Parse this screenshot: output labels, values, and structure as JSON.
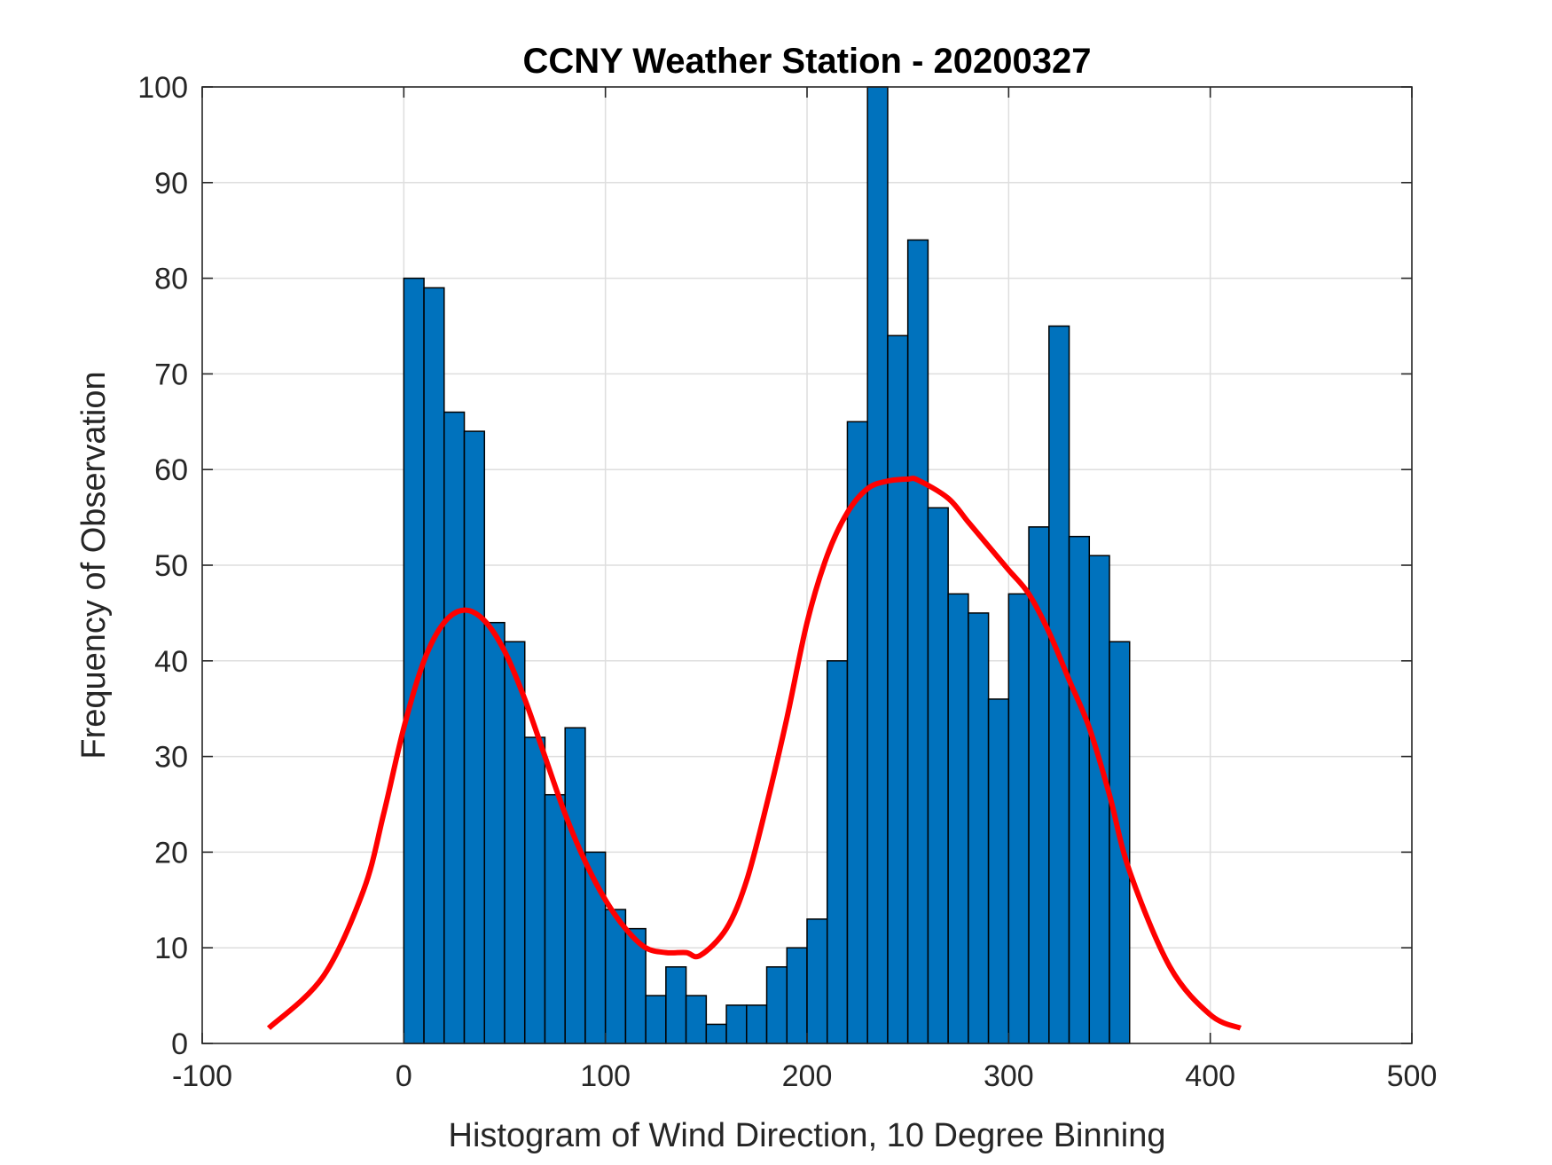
{
  "chart_data": {
    "type": "bar",
    "title": "CCNY Weather Station - 20200327",
    "xlabel": "Histogram of Wind Direction, 10 Degree Binning",
    "ylabel": "Frequency of Observation",
    "xlim": [
      -100,
      500
    ],
    "ylim": [
      0,
      100
    ],
    "xticks": [
      -100,
      0,
      100,
      200,
      300,
      400,
      500
    ],
    "yticks": [
      0,
      10,
      20,
      30,
      40,
      50,
      60,
      70,
      80,
      90,
      100
    ],
    "grid": true,
    "bin_width": 10,
    "bin_edges_start": [
      0,
      10,
      20,
      30,
      40,
      50,
      60,
      70,
      80,
      90,
      100,
      110,
      120,
      130,
      140,
      150,
      160,
      170,
      180,
      190,
      200,
      210,
      220,
      230,
      240,
      250,
      260,
      270,
      280,
      290,
      300,
      310,
      320,
      330,
      340,
      350
    ],
    "values": [
      80,
      79,
      66,
      64,
      44,
      42,
      32,
      26,
      33,
      20,
      14,
      12,
      5,
      8,
      5,
      2,
      4,
      4,
      8,
      10,
      13,
      40,
      65,
      100,
      74,
      84,
      56,
      47,
      45,
      36,
      47,
      54,
      75,
      53,
      51,
      42
    ],
    "bar_color": "#0072BD",
    "fit_curve": {
      "name": "fit",
      "color": "#FF0000",
      "x": [
        -67,
        -40,
        -20,
        -10,
        0,
        10,
        20,
        30,
        40,
        50,
        60,
        70,
        80,
        90,
        100,
        110,
        120,
        130,
        140,
        147,
        160,
        170,
        180,
        190,
        200,
        210,
        220,
        230,
        240,
        250,
        255,
        270,
        280,
        290,
        300,
        310,
        320,
        330,
        340,
        350,
        360,
        380,
        400,
        415
      ],
      "y": [
        1.6,
        7,
        16,
        24,
        33,
        40,
        44,
        45.3,
        44.2,
        41,
        36,
        30,
        24,
        19,
        15,
        12,
        10,
        9.5,
        9.5,
        9.2,
        12,
        17,
        25,
        34,
        44,
        51,
        55.5,
        58,
        58.8,
        59,
        58.9,
        57,
        54.5,
        52,
        49.5,
        47,
        43,
        38,
        33,
        26,
        18,
        8,
        3,
        1.6
      ]
    }
  }
}
